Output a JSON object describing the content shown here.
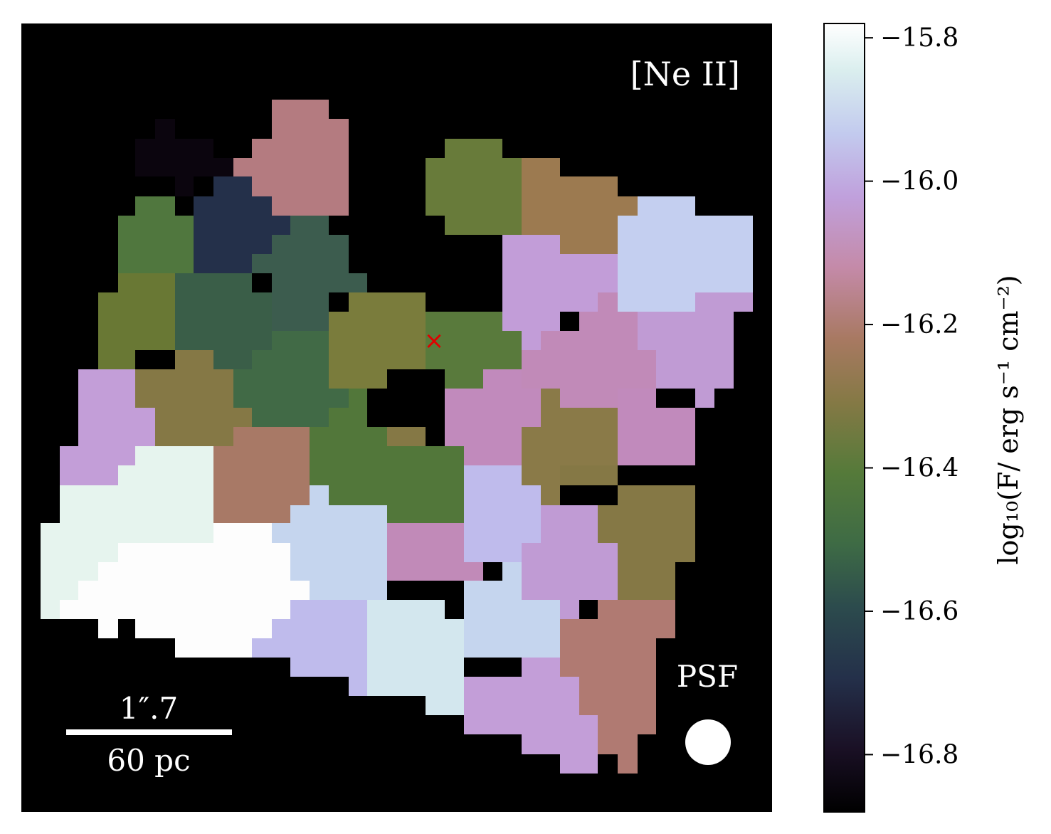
{
  "chart_data": {
    "type": "heatmap",
    "map_label": "[Ne II]",
    "scale_bar": {
      "angular": "1″.7",
      "physical": "60 pc"
    },
    "psf_label": "PSF",
    "marker": "×",
    "colorbar": {
      "label": "log₁₀(F/ erg s⁻¹ cm⁻²)",
      "ticks": [
        -15.8,
        -16.0,
        -16.2,
        -16.4,
        -16.6,
        -16.8
      ],
      "tick_labels": [
        "−15.8",
        "−16.0",
        "−16.2",
        "−16.4",
        "−16.6",
        "−16.8"
      ],
      "range": [
        -16.88,
        -15.78
      ],
      "colormap": "cubehelix"
    },
    "regions": [
      {
        "value": -16.85,
        "color": "#0b050e"
      },
      {
        "value": -16.74,
        "color": "#24304a"
      },
      {
        "value": -16.25,
        "color": "#b47b80"
      },
      {
        "value": -16.42,
        "color": "#687b3a"
      },
      {
        "value": -16.33,
        "color": "#9c7a50"
      },
      {
        "value": -15.98,
        "color": "#c4cff0"
      },
      {
        "value": -16.47,
        "color": "#50773e"
      },
      {
        "value": -16.61,
        "color": "#3c5c4e"
      },
      {
        "value": -16.1,
        "color": "#c29dd8"
      },
      {
        "value": -16.41,
        "color": "#697834"
      },
      {
        "value": -16.58,
        "color": "#3a5e48"
      },
      {
        "value": -16.39,
        "color": "#7a7c3c"
      },
      {
        "value": -16.45,
        "color": "#597a3c"
      },
      {
        "value": -16.56,
        "color": "#416a46"
      },
      {
        "value": -16.16,
        "color": "#c18ab8"
      },
      {
        "value": -16.13,
        "color": "#c09bd4"
      },
      {
        "value": -16.37,
        "color": "#8a7a48"
      },
      {
        "value": -16.12,
        "color": "#c39ed8"
      },
      {
        "value": -16.18,
        "color": "#c18abc"
      },
      {
        "value": -16.4,
        "color": "#857845"
      },
      {
        "value": -16.51,
        "color": "#52773a"
      },
      {
        "value": -15.86,
        "color": "#e6f4ee"
      },
      {
        "value": -16.27,
        "color": "#a87966"
      },
      {
        "value": -16.05,
        "color": "#bfbbec"
      },
      {
        "value": -15.79,
        "color": "#fdfdfd"
      },
      {
        "value": -16.0,
        "color": "#c5d5ee"
      },
      {
        "value": -15.93,
        "color": "#d3e7ee"
      },
      {
        "value": -16.22,
        "color": "#b07a72"
      }
    ]
  }
}
